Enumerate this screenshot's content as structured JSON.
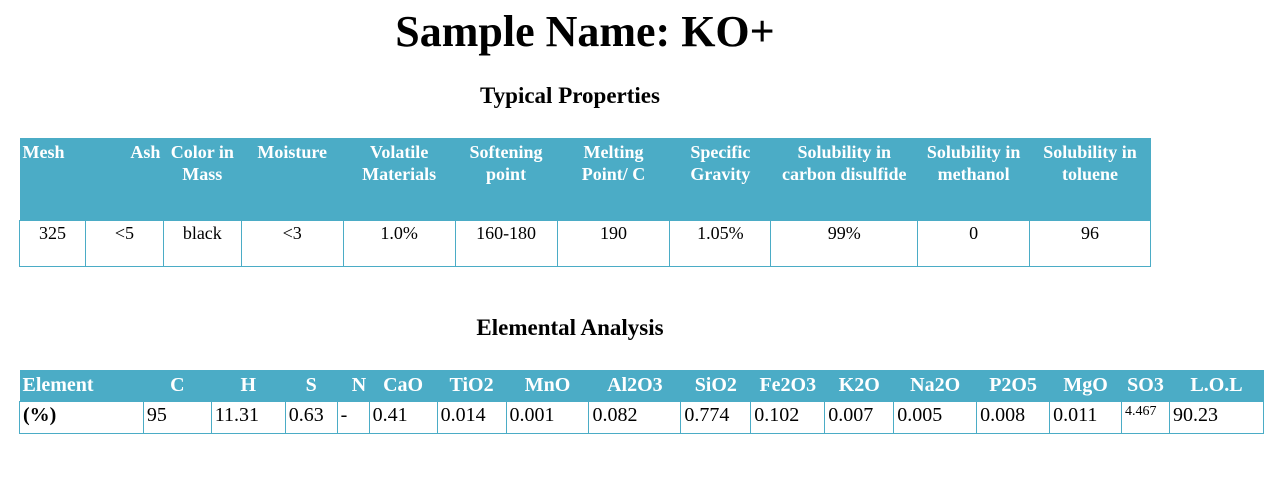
{
  "title": "Sample Name: KO+",
  "typical": {
    "heading": "Typical Properties",
    "headers": [
      "Mesh",
      "Ash",
      "Color in Mass",
      "Moisture",
      "Volatile Materials",
      "Softening point",
      "Melting Point/ C",
      "Specific Gravity",
      "Solubility in carbon disulfide",
      "Solubility in methanol",
      "Solubility in toluene"
    ],
    "values": [
      "325",
      "<5",
      "black",
      "<3",
      "1.0%",
      "160-180",
      "190",
      "1.05%",
      "99%",
      "0",
      "96"
    ]
  },
  "elemental": {
    "heading": "Elemental Analysis",
    "headers": [
      "Element",
      "C",
      "H",
      "S",
      "N",
      "CaO",
      "TiO2",
      "MnO",
      "Al2O3",
      "SiO2",
      "Fe2O3",
      "K2O",
      "Na2O",
      "P2O5",
      "MgO",
      "SO3",
      "L.O.L"
    ],
    "values": [
      "(%)",
      "95",
      "11.31",
      "0.63",
      "-",
      "0.41",
      "0.014",
      "0.001",
      "0.082",
      "0.774",
      "0.102",
      "0.007",
      "0.005",
      "0.008",
      "0.011",
      "4.467",
      "90.23"
    ]
  }
}
